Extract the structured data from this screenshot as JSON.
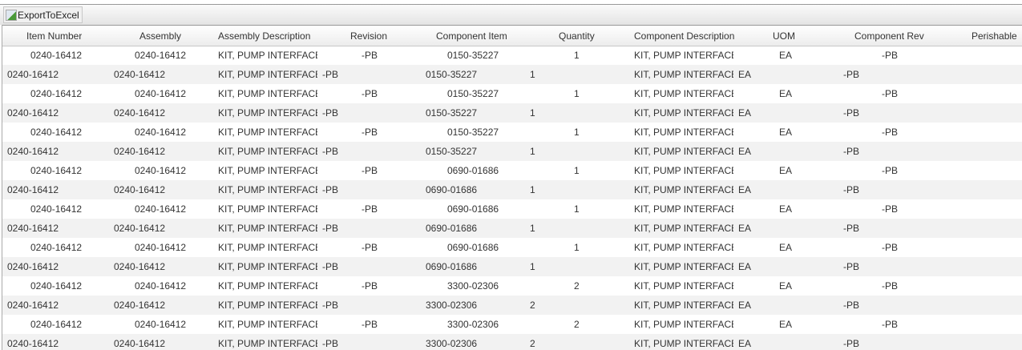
{
  "toolbar": {
    "export_label": "ExportToExcel",
    "export_icon": "broken-image-icon"
  },
  "columns": [
    "Item Number",
    "Assembly",
    "Assembly Description",
    "Revision",
    "Component Item",
    "Quantity",
    "Component Description",
    "UOM",
    "Component Rev",
    "Perishable"
  ],
  "rows": [
    [
      "0240-16412",
      "0240-16412",
      "KIT, PUMP INTERFACE ASSEMBLY",
      "-PB",
      "0150-35227",
      "1",
      "KIT, PUMP INTERFACE ASSEMBLY",
      "EA",
      "-PB",
      ""
    ],
    [
      "0240-16412",
      "0240-16412",
      "KIT, PUMP INTERFACE ASSEMBLY",
      "-PB",
      "0150-35227",
      "1",
      "KIT, PUMP INTERFACE ASSEMBLY",
      "EA",
      "-PB",
      ""
    ],
    [
      "0240-16412",
      "0240-16412",
      "KIT, PUMP INTERFACE ASSEMBLY",
      "-PB",
      "0150-35227",
      "1",
      "KIT, PUMP INTERFACE ASSEMBLY",
      "EA",
      "-PB",
      ""
    ],
    [
      "0240-16412",
      "0240-16412",
      "KIT, PUMP INTERFACE ASSEMBLY",
      "-PB",
      "0150-35227",
      "1",
      "KIT, PUMP INTERFACE ASSEMBLY",
      "EA",
      "-PB",
      ""
    ],
    [
      "0240-16412",
      "0240-16412",
      "KIT, PUMP INTERFACE ASSEMBLY",
      "-PB",
      "0150-35227",
      "1",
      "KIT, PUMP INTERFACE ASSEMBLY",
      "EA",
      "-PB",
      ""
    ],
    [
      "0240-16412",
      "0240-16412",
      "KIT, PUMP INTERFACE ASSEMBLY",
      "-PB",
      "0150-35227",
      "1",
      "KIT, PUMP INTERFACE ASSEMBLY",
      "EA",
      "-PB",
      ""
    ],
    [
      "0240-16412",
      "0240-16412",
      "KIT, PUMP INTERFACE ASSEMBLY",
      "-PB",
      "0690-01686",
      "1",
      "KIT, PUMP INTERFACE ASSEMBLY",
      "EA",
      "-PB",
      ""
    ],
    [
      "0240-16412",
      "0240-16412",
      "KIT, PUMP INTERFACE ASSEMBLY",
      "-PB",
      "0690-01686",
      "1",
      "KIT, PUMP INTERFACE ASSEMBLY",
      "EA",
      "-PB",
      ""
    ],
    [
      "0240-16412",
      "0240-16412",
      "KIT, PUMP INTERFACE ASSEMBLY",
      "-PB",
      "0690-01686",
      "1",
      "KIT, PUMP INTERFACE ASSEMBLY",
      "EA",
      "-PB",
      ""
    ],
    [
      "0240-16412",
      "0240-16412",
      "KIT, PUMP INTERFACE ASSEMBLY",
      "-PB",
      "0690-01686",
      "1",
      "KIT, PUMP INTERFACE ASSEMBLY",
      "EA",
      "-PB",
      ""
    ],
    [
      "0240-16412",
      "0240-16412",
      "KIT, PUMP INTERFACE ASSEMBLY",
      "-PB",
      "0690-01686",
      "1",
      "KIT, PUMP INTERFACE ASSEMBLY",
      "EA",
      "-PB",
      ""
    ],
    [
      "0240-16412",
      "0240-16412",
      "KIT, PUMP INTERFACE ASSEMBLY",
      "-PB",
      "0690-01686",
      "1",
      "KIT, PUMP INTERFACE ASSEMBLY",
      "EA",
      "-PB",
      ""
    ],
    [
      "0240-16412",
      "0240-16412",
      "KIT, PUMP INTERFACE ASSEMBLY",
      "-PB",
      "3300-02306",
      "2",
      "KIT, PUMP INTERFACE ASSEMBLY",
      "EA",
      "-PB",
      ""
    ],
    [
      "0240-16412",
      "0240-16412",
      "KIT, PUMP INTERFACE ASSEMBLY",
      "-PB",
      "3300-02306",
      "2",
      "KIT, PUMP INTERFACE ASSEMBLY",
      "EA",
      "-PB",
      ""
    ],
    [
      "0240-16412",
      "0240-16412",
      "KIT, PUMP INTERFACE ASSEMBLY",
      "-PB",
      "3300-02306",
      "2",
      "KIT, PUMP INTERFACE ASSEMBLY",
      "EA",
      "-PB",
      ""
    ],
    [
      "0240-16412",
      "0240-16412",
      "KIT, PUMP INTERFACE ASSEMBLY",
      "-PB",
      "3300-02306",
      "2",
      "KIT, PUMP INTERFACE ASSEMBLY",
      "EA",
      "-PB",
      ""
    ]
  ]
}
